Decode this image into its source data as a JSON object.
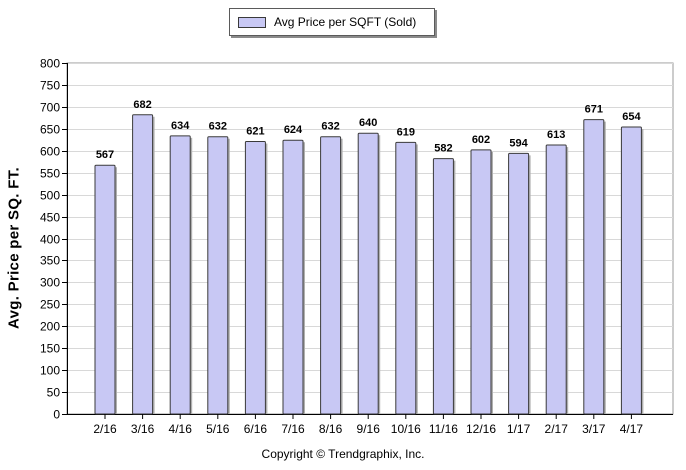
{
  "legend": {
    "label": "Avg Price per SQFT (Sold)"
  },
  "footer": {
    "copyright": "Copyright © Trendgraphix, Inc."
  },
  "colors": {
    "bar_fill": "#c8c8f4",
    "bar_stroke": "#3a3a3a",
    "grid": "#d8d8d8"
  },
  "chart_data": {
    "type": "bar",
    "title": "",
    "xlabel": "",
    "ylabel": "Avg. Price per SQ. FT.",
    "ylim": [
      0,
      800
    ],
    "ytick_step": 50,
    "grid": true,
    "legend_position": "top-center",
    "categories": [
      "2/16",
      "3/16",
      "4/16",
      "5/16",
      "6/16",
      "7/16",
      "8/16",
      "9/16",
      "10/16",
      "11/16",
      "12/16",
      "1/17",
      "2/17",
      "3/17",
      "4/17"
    ],
    "series": [
      {
        "name": "Avg Price per SQFT (Sold)",
        "values": [
          567,
          682,
          634,
          632,
          621,
          624,
          632,
          640,
          619,
          582,
          602,
          594,
          613,
          671,
          654
        ]
      }
    ]
  }
}
